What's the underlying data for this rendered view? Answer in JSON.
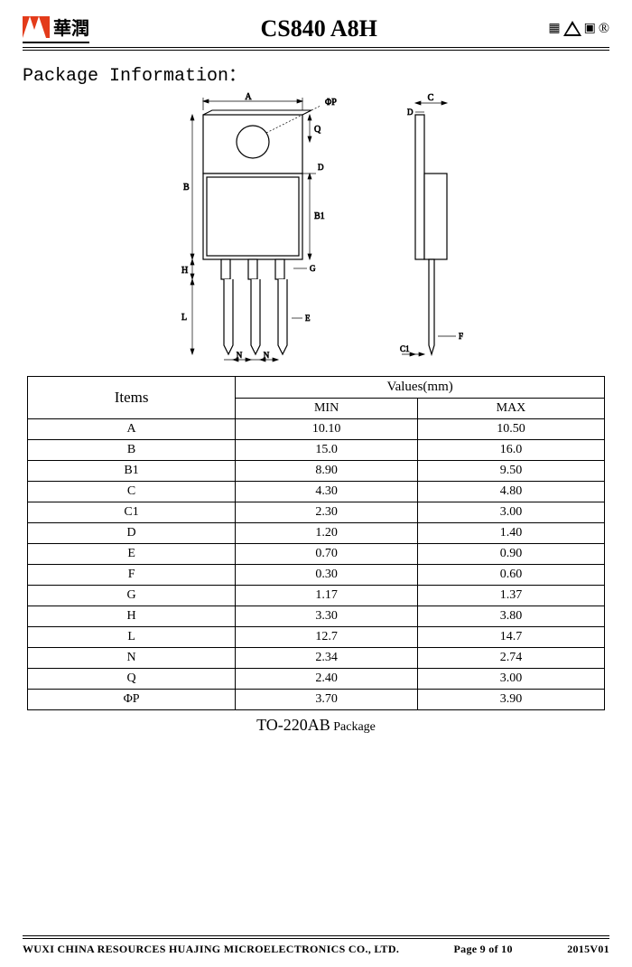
{
  "header": {
    "logo_text": "華潤",
    "title": "CS840 A8H",
    "registered": "®"
  },
  "section_title": "Package Information：",
  "diagram": {
    "labels": {
      "A": "A",
      "B": "B",
      "B1": "B1",
      "C": "C",
      "C1": "C1",
      "D": "D",
      "E": "E",
      "F": "F",
      "G": "G",
      "H": "H",
      "L": "L",
      "N": "N",
      "Q": "Q",
      "phiP": "ΦP"
    },
    "stroke": "#000000",
    "fill_body": "#ffffff",
    "hole_fill": "#ffffff"
  },
  "table": {
    "header_items": "Items",
    "header_values": "Values(mm)",
    "header_min": "MIN",
    "header_max": "MAX",
    "rows": [
      {
        "item": "A",
        "min": "10.10",
        "max": "10.50"
      },
      {
        "item": "B",
        "min": "15.0",
        "max": "16.0"
      },
      {
        "item": "B1",
        "min": "8.90",
        "max": "9.50"
      },
      {
        "item": "C",
        "min": "4.30",
        "max": "4.80"
      },
      {
        "item": "C1",
        "min": "2.30",
        "max": "3.00"
      },
      {
        "item": "D",
        "min": "1.20",
        "max": "1.40"
      },
      {
        "item": "E",
        "min": "0.70",
        "max": "0.90"
      },
      {
        "item": "F",
        "min": "0.30",
        "max": "0.60"
      },
      {
        "item": "G",
        "min": "1.17",
        "max": "1.37"
      },
      {
        "item": "H",
        "min": "3.30",
        "max": "3.80"
      },
      {
        "item": "L",
        "min": "12.7",
        "max": "14.7"
      },
      {
        "item": "N",
        "min": "2.34",
        "max": "2.74"
      },
      {
        "item": "Q",
        "min": "2.40",
        "max": "3.00"
      },
      {
        "item": "ΦP",
        "min": "3.70",
        "max": "3.90"
      }
    ]
  },
  "caption_main": "TO-220AB",
  "caption_suffix": " Package",
  "footer": {
    "company": "WUXI CHINA RESOURCES HUAJING MICROELECTRONICS CO., LTD.",
    "page": "Page 9 of 10",
    "rev": "2015V01"
  }
}
